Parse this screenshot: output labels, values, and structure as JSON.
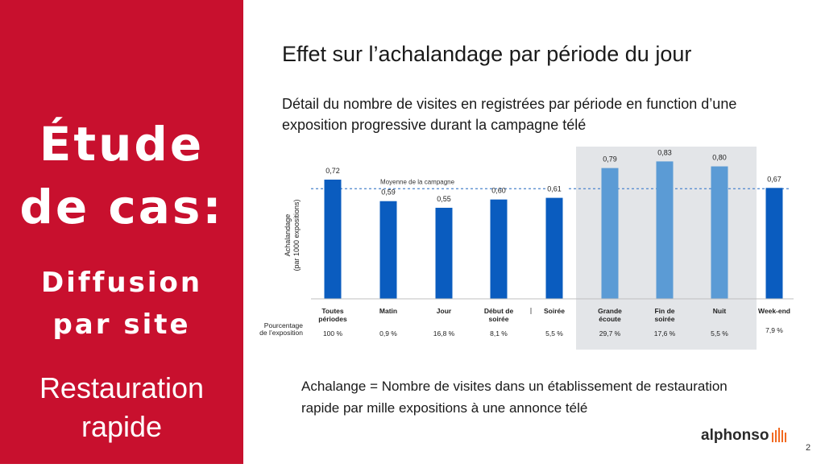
{
  "sidebar": {
    "title_line1": "Étude",
    "title_line2": "de cas:",
    "section_line1": "Diffusion",
    "section_line2": "par site",
    "industry_line1": "Restauration",
    "industry_line2": "rapide"
  },
  "slide": {
    "title": "Effet sur l’achalandage par période du jour",
    "subtitle": "Détail du nombre de visites en registrées par période en function d’une exposition progressive durant la campagne télé",
    "definition": "Achalange = Nombre de visites dans un établissement de restauration rapide par mille expositions à une annonce télé",
    "logo": "alphonso",
    "page_number": "2"
  },
  "colors": {
    "accent_red": "#c8102e",
    "bar_dark": "#0a5cbf",
    "bar_light": "#5b9bd5",
    "highlight_bg": "#e3e5e8",
    "logo_orange": "#f26a21"
  },
  "chart_data": {
    "type": "bar",
    "ylabel": [
      "Achalandage",
      "(par 1000 expositions)"
    ],
    "row_label": [
      "Pourcentage",
      "de l’exposition"
    ],
    "average_label": "Moyenne de la campagne",
    "average_value": 0.665,
    "ylim": [
      0,
      0.9
    ],
    "categories": [
      {
        "label": [
          "Toutes",
          "périodes"
        ],
        "value": 0.72,
        "value_label": "0,72",
        "exposure": "100 %",
        "highlight": false
      },
      {
        "label": [
          "Matin"
        ],
        "value": 0.59,
        "value_label": "0,59",
        "exposure": "0,9 %",
        "highlight": false
      },
      {
        "label": [
          "Jour"
        ],
        "value": 0.55,
        "value_label": "0,55",
        "exposure": "16,8 %",
        "highlight": false
      },
      {
        "label": [
          "Début de",
          "soirée"
        ],
        "value": 0.6,
        "value_label": "0,60",
        "exposure": "8,1 %",
        "highlight": false
      },
      {
        "label": [
          "Soirée"
        ],
        "value": 0.61,
        "value_label": "0,61",
        "exposure": "5,5 %",
        "highlight": false
      },
      {
        "label": [
          "Grande",
          "écoute"
        ],
        "value": 0.79,
        "value_label": "0,79",
        "exposure": "29,7 %",
        "highlight": true
      },
      {
        "label": [
          "Fin de",
          "soirée"
        ],
        "value": 0.83,
        "value_label": "0,83",
        "exposure": "17,6 %",
        "highlight": true
      },
      {
        "label": [
          "Nuit"
        ],
        "value": 0.8,
        "value_label": "0,80",
        "exposure": "5,5 %",
        "highlight": true
      },
      {
        "label": [
          "Week-end"
        ],
        "value": 0.67,
        "value_label": "0,67",
        "exposure": "7,9 %",
        "highlight": false
      }
    ]
  }
}
